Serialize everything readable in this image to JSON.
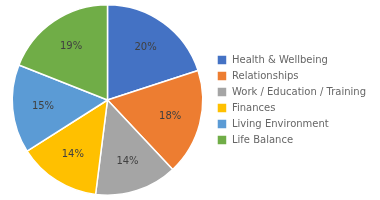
{
  "chart_data": {
    "type": "pie",
    "categories": [
      "Health & Wellbeing",
      "Relationships",
      "Work / Education / Training",
      "Finances",
      "Living Environment",
      "Life Balance"
    ],
    "values": [
      20,
      18,
      14,
      14,
      15,
      19
    ],
    "value_labels": [
      "20%",
      "18%",
      "14%",
      "14%",
      "15%",
      "19%"
    ],
    "colors": [
      "#4472C4",
      "#ED7D31",
      "#A5A5A5",
      "#FFC000",
      "#5B9BD5",
      "#70AD47"
    ],
    "data_labels": true,
    "legend": "right"
  }
}
